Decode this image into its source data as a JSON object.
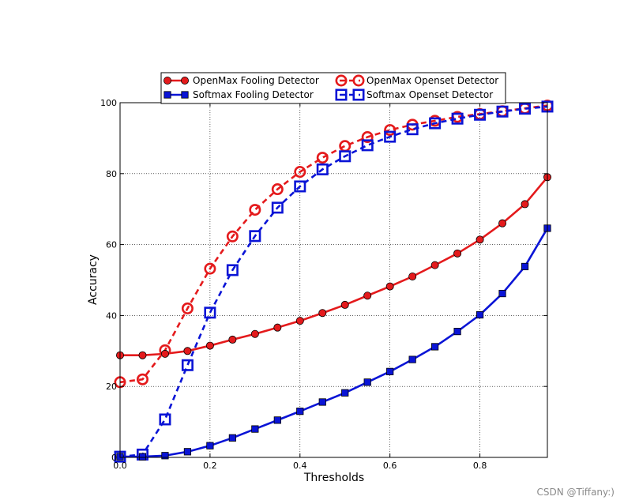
{
  "chart_data": {
    "type": "line",
    "title": "",
    "xlabel": "Thresholds",
    "ylabel": "Accuracy",
    "xlim": [
      0.0,
      0.95
    ],
    "ylim": [
      0,
      100
    ],
    "xticks": [
      0.0,
      0.2,
      0.4,
      0.6,
      0.8
    ],
    "xtick_labels": [
      "0.0",
      "0.2",
      "0.4",
      "0.6",
      "0.8"
    ],
    "yticks": [
      0,
      20,
      40,
      60,
      80,
      100
    ],
    "ytick_labels": [
      "0",
      "20",
      "40",
      "60",
      "80",
      "100"
    ],
    "grid": true,
    "legend_position": "top",
    "x": [
      0.0,
      0.05,
      0.1,
      0.15,
      0.2,
      0.25,
      0.3,
      0.35,
      0.4,
      0.45,
      0.5,
      0.55,
      0.6,
      0.65,
      0.7,
      0.75,
      0.8,
      0.85,
      0.9,
      0.95
    ],
    "series": [
      {
        "name": "OpenMax Fooling Detector",
        "color": "#e41a1c",
        "line_style": "solid",
        "marker": "filled-circle",
        "values": [
          28.8,
          28.8,
          29.2,
          30.0,
          31.5,
          33.2,
          34.8,
          36.6,
          38.5,
          40.7,
          43.0,
          45.6,
          48.2,
          51.0,
          54.2,
          57.5,
          61.4,
          66.0,
          71.4,
          79.0
        ]
      },
      {
        "name": "Softmax Fooling Detector",
        "color": "#0a14d6",
        "line_style": "solid",
        "marker": "filled-square",
        "values": [
          0.2,
          0.2,
          0.5,
          1.6,
          3.3,
          5.5,
          8.0,
          10.5,
          13.0,
          15.6,
          18.2,
          21.2,
          24.2,
          27.6,
          31.2,
          35.5,
          40.2,
          46.2,
          53.8,
          64.6
        ]
      },
      {
        "name": "OpenMax Openset Detector",
        "color": "#e41a1c",
        "line_style": "dashed",
        "marker": "open-circle",
        "values": [
          21.2,
          22.0,
          30.2,
          42.0,
          53.2,
          62.3,
          69.8,
          75.6,
          80.5,
          84.5,
          87.8,
          90.3,
          92.3,
          93.8,
          94.9,
          96.0,
          96.8,
          97.6,
          98.4,
          99.2
        ]
      },
      {
        "name": "Softmax Openset Detector",
        "color": "#0a14d6",
        "line_style": "dashed",
        "marker": "open-square",
        "values": [
          0.2,
          0.8,
          10.7,
          26.0,
          40.8,
          52.8,
          62.4,
          70.4,
          76.4,
          81.2,
          84.9,
          88.0,
          90.4,
          92.5,
          94.2,
          95.5,
          96.6,
          97.5,
          98.3,
          98.9
        ]
      }
    ]
  },
  "watermark": "CSDN @Tiffany:)"
}
